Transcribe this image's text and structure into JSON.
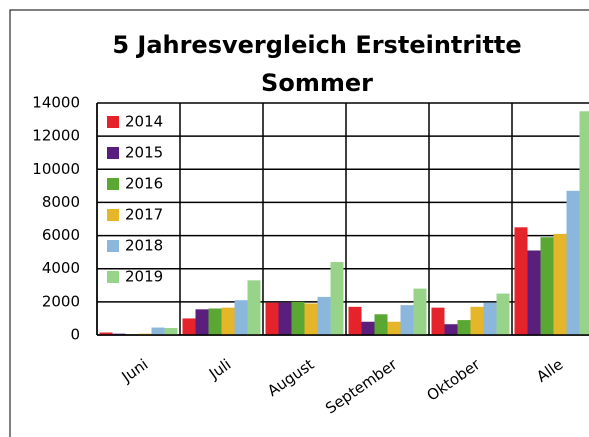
{
  "chart_data": {
    "type": "bar",
    "title": [
      "5 Jahresvergleich Ersteintritte",
      "Sommer"
    ],
    "categories": [
      "Juni",
      "Juli",
      "August",
      "September",
      "Oktober",
      "Alle"
    ],
    "series": [
      {
        "name": "2014",
        "color": "#e5232b",
        "values": [
          150,
          1000,
          1950,
          1700,
          1650,
          6500
        ]
      },
      {
        "name": "2015",
        "color": "#5a1f7c",
        "values": [
          80,
          1550,
          1950,
          800,
          650,
          5100
        ]
      },
      {
        "name": "2016",
        "color": "#5aa833",
        "values": [
          50,
          1600,
          2000,
          1250,
          900,
          5900
        ]
      },
      {
        "name": "2017",
        "color": "#e6b62a",
        "values": [
          80,
          1650,
          1900,
          800,
          1700,
          6100
        ]
      },
      {
        "name": "2018",
        "color": "#8cb7dc",
        "values": [
          450,
          2100,
          2300,
          1800,
          1950,
          8700
        ]
      },
      {
        "name": "2019",
        "color": "#98d38a",
        "values": [
          420,
          3300,
          4400,
          2800,
          2500,
          13500
        ]
      }
    ],
    "ylim": [
      0,
      14000
    ],
    "yticks": [
      0,
      2000,
      4000,
      6000,
      8000,
      10000,
      12000,
      14000
    ],
    "grid": true,
    "legend": "top-left"
  }
}
